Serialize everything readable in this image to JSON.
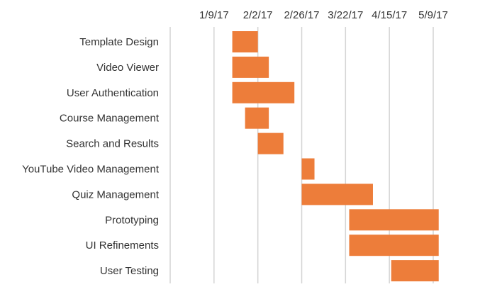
{
  "chart_data": {
    "type": "bar",
    "orientation": "horizontal-gantt",
    "title": "",
    "xlabel": "",
    "ylabel": "",
    "x_axis_position": "top",
    "grid": "vertical",
    "legend": "none",
    "xlim": [
      "2016-12-16",
      "2017-05-09"
    ],
    "x_tick_labels": [
      "1/9/17",
      "2/2/17",
      "2/26/17",
      "3/22/17",
      "4/15/17",
      "5/9/17"
    ],
    "x_tick_values": [
      "2017-01-09",
      "2017-02-02",
      "2017-02-26",
      "2017-03-22",
      "2017-04-15",
      "2017-05-09"
    ],
    "categories": [
      "Template Design",
      "Video Viewer",
      "User Authentication",
      "Course Management",
      "Search and Results",
      "YouTube Video Management",
      "Quiz Management",
      "Prototyping",
      "UI Refinements",
      "User Testing"
    ],
    "series": [
      {
        "start": [
          "2017-01-19",
          "2017-01-19",
          "2017-01-19",
          "2017-01-26",
          "2017-02-02",
          "2017-02-26",
          "2017-02-26",
          "2017-03-24",
          "2017-03-24",
          "2017-04-16"
        ],
        "end": [
          "2017-02-02",
          "2017-02-08",
          "2017-02-22",
          "2017-02-08",
          "2017-02-16",
          "2017-03-05",
          "2017-04-06",
          "2017-05-12",
          "2017-05-12",
          "2017-05-12"
        ]
      }
    ],
    "colors": {
      "bar": "#ed7d3a",
      "grid": "#d4d4d4",
      "text": "#333333"
    }
  }
}
